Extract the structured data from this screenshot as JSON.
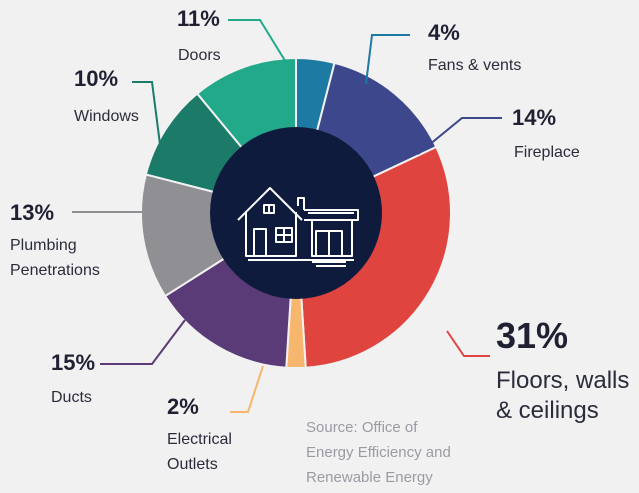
{
  "chart_data": {
    "type": "pie",
    "style": "donut",
    "start_angle_deg": 0,
    "center_icon": "house-icon",
    "slices": [
      {
        "value": 4,
        "pct": "4%",
        "label": [
          "Fans & vents"
        ],
        "color": "#1d7aa3"
      },
      {
        "value": 14,
        "pct": "14%",
        "label": [
          "Fireplace"
        ],
        "color": "#3c478c"
      },
      {
        "value": 31,
        "pct": "31%",
        "label": [
          "Floors, walls",
          "& ceilings"
        ],
        "color": "#e0443e"
      },
      {
        "value": 2,
        "pct": "2%",
        "label": [
          "Electrical",
          "Outlets"
        ],
        "color": "#f6b66d"
      },
      {
        "value": 15,
        "pct": "15%",
        "label": [
          "Ducts"
        ],
        "color": "#5a3b77"
      },
      {
        "value": 13,
        "pct": "13%",
        "label": [
          "Plumbing",
          "Penetrations"
        ],
        "color": "#8f8f94"
      },
      {
        "value": 10,
        "pct": "10%",
        "label": [
          "Windows"
        ],
        "color": "#1b7a68"
      },
      {
        "value": 11,
        "pct": "11%",
        "label": [
          "Doors"
        ],
        "color": "#22a98a"
      }
    ],
    "source": [
      "Source:  Office of",
      "Energy Efficiency and",
      "Renewable Energy"
    ],
    "colors": {
      "center": "#0f1b3d",
      "icon": "#ffffff",
      "background": "#f1f1f2"
    }
  }
}
